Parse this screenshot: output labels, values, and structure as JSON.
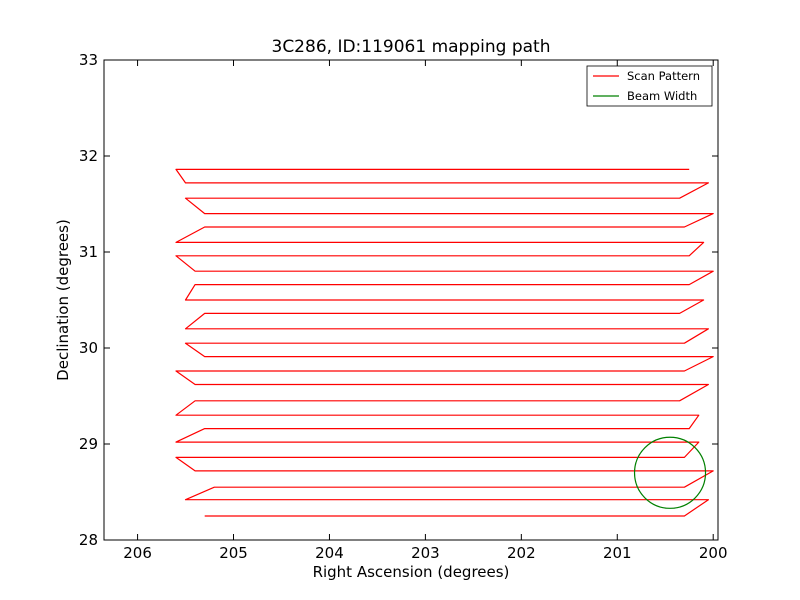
{
  "chart_data": {
    "type": "line",
    "title": "3C286, ID:119061 mapping path",
    "xlabel": "Right Ascension (degrees)",
    "ylabel": "Declination (degrees)",
    "xlim": [
      206.35,
      199.95
    ],
    "ylim": [
      28,
      33
    ],
    "x_ticks": [
      206,
      205,
      204,
      203,
      202,
      201,
      200
    ],
    "y_ticks": [
      28,
      29,
      30,
      31,
      32,
      33
    ],
    "x_tick_labels": [
      "206",
      "205",
      "204",
      "203",
      "202",
      "201",
      "200"
    ],
    "y_tick_labels": [
      "28",
      "29",
      "30",
      "31",
      "32",
      "33"
    ],
    "grid": false,
    "legend_position": "top-right",
    "series": [
      {
        "name": "Scan Pattern",
        "color": "#ff0000",
        "x": [
          205.3,
          200.3,
          200.05,
          205.5,
          205.2,
          200.3,
          200.0,
          205.4,
          205.6,
          200.3,
          200.15,
          205.6,
          205.3,
          200.25,
          200.15,
          205.6,
          205.4,
          200.35,
          200.05,
          205.4,
          205.6,
          200.3,
          200.0,
          205.3,
          205.5,
          200.3,
          200.05,
          205.5,
          205.3,
          200.35,
          200.1,
          205.5,
          205.4,
          200.25,
          200.0,
          205.4,
          205.6,
          200.25,
          200.1,
          205.6,
          205.3,
          200.3,
          200.0,
          205.3,
          205.5,
          200.35,
          200.05,
          205.5,
          205.6,
          200.25
        ],
        "y": [
          28.25,
          28.25,
          28.42,
          28.42,
          28.55,
          28.55,
          28.72,
          28.72,
          28.86,
          28.86,
          29.02,
          29.02,
          29.16,
          29.16,
          29.3,
          29.3,
          29.45,
          29.45,
          29.62,
          29.62,
          29.76,
          29.76,
          29.91,
          29.91,
          30.05,
          30.05,
          30.2,
          30.2,
          30.36,
          30.36,
          30.5,
          30.5,
          30.66,
          30.66,
          30.8,
          30.8,
          30.96,
          30.96,
          31.1,
          31.1,
          31.26,
          31.26,
          31.4,
          31.4,
          31.56,
          31.56,
          31.72,
          31.72,
          31.86,
          31.86
        ]
      },
      {
        "name": "Beam Width",
        "color": "#008000",
        "center": [
          200.45,
          28.7
        ],
        "radius": 0.37
      }
    ]
  }
}
